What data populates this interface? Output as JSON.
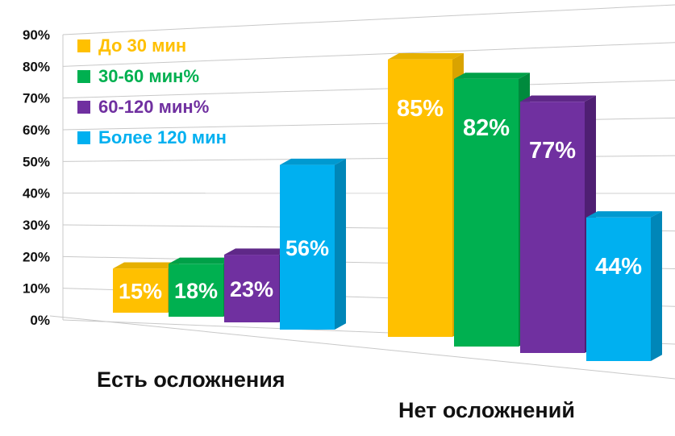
{
  "chart_data": {
    "type": "bar",
    "categories": [
      "Есть осложнения",
      "Нет осложнений"
    ],
    "series": [
      {
        "name": "До 30 мин",
        "values": [
          15,
          85
        ],
        "labels": [
          "15%",
          "85%"
        ],
        "color": "#FFC000",
        "side": "#D9A300",
        "top": "#E6B000"
      },
      {
        "name": "30-60 мин%",
        "values": [
          18,
          82
        ],
        "labels": [
          "18%",
          "82%"
        ],
        "color": "#00B050",
        "side": "#008A3D",
        "top": "#00A048"
      },
      {
        "name": "60-120 мин%",
        "values": [
          23,
          77
        ],
        "labels": [
          "23%",
          "77%"
        ],
        "color": "#7030A0",
        "side": "#4F1F73",
        "top": "#5F2888"
      },
      {
        "name": "Более 120 мин",
        "values": [
          56,
          44
        ],
        "labels": [
          "56%",
          "44%"
        ],
        "color": "#00B0F0",
        "side": "#0086B8",
        "top": "#0099D0"
      }
    ],
    "yticks": [
      "0%",
      "10%",
      "20%",
      "30%",
      "40%",
      "50%",
      "60%",
      "70%",
      "80%",
      "90%"
    ],
    "ylim": [
      0,
      90
    ],
    "legend": "top-left",
    "grid": true
  }
}
